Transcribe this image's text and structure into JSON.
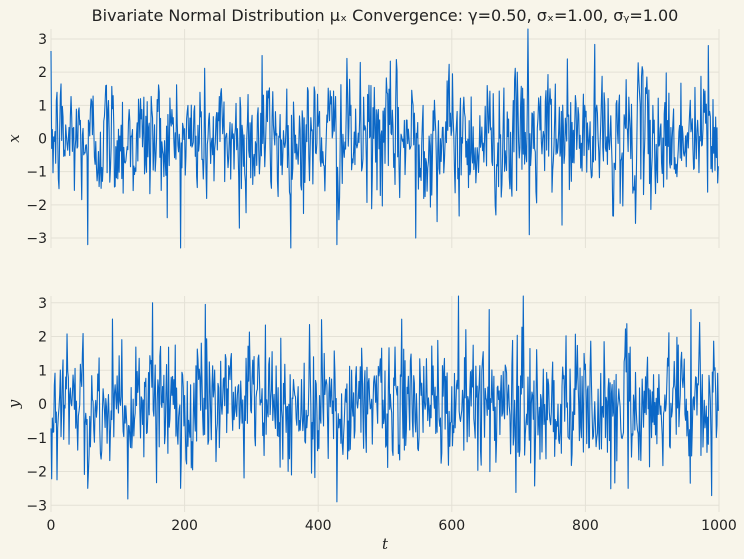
{
  "chart_data": {
    "type": "line",
    "title": "Bivariate Normal Distribution μₓ Convergence: γ=0.50, σₓ=1.00, σᵧ=1.00",
    "color": "#0b67c6",
    "background": "#f8f5ea",
    "grid": true,
    "xlabel": "t",
    "xlim": [
      0,
      1000
    ],
    "xticks": [
      "0",
      "200",
      "400",
      "600",
      "800",
      "1000"
    ],
    "x_tick_values": [
      0,
      200,
      400,
      600,
      800,
      1000
    ],
    "n_points": 1000,
    "panels": [
      {
        "ylabel": "x",
        "ylim": [
          -3.3,
          3.3
        ],
        "yticks": [
          "−3",
          "−2",
          "−1",
          "0",
          "1",
          "2",
          "3"
        ],
        "y_tick_values": [
          -3,
          -2,
          -1,
          0,
          1,
          2,
          3
        ],
        "noise_seed": 12345,
        "notable_points": [
          {
            "t": 55,
            "value": -3.2
          },
          {
            "t": 282,
            "value": -2.7
          },
          {
            "t": 316,
            "value": 2.5
          },
          {
            "t": 428,
            "value": -3.2
          },
          {
            "t": 546,
            "value": -3.0
          },
          {
            "t": 714,
            "value": 3.3
          },
          {
            "t": 716,
            "value": -2.9
          },
          {
            "t": 984,
            "value": 2.8
          }
        ]
      },
      {
        "ylabel": "y",
        "ylim": [
          -3.2,
          3.2
        ],
        "yticks": [
          "−3",
          "−2",
          "−1",
          "0",
          "1",
          "2",
          "3"
        ],
        "y_tick_values": [
          -3,
          -2,
          -1,
          0,
          1,
          2,
          3
        ],
        "noise_seed": 98765,
        "notable_points": [
          {
            "t": 55,
            "value": -2.5
          },
          {
            "t": 152,
            "value": 3.0
          },
          {
            "t": 194,
            "value": -2.5
          },
          {
            "t": 405,
            "value": 2.5
          },
          {
            "t": 428,
            "value": -2.9
          },
          {
            "t": 656,
            "value": 2.8
          },
          {
            "t": 864,
            "value": -2.5
          },
          {
            "t": 958,
            "value": 2.8
          }
        ]
      }
    ]
  }
}
